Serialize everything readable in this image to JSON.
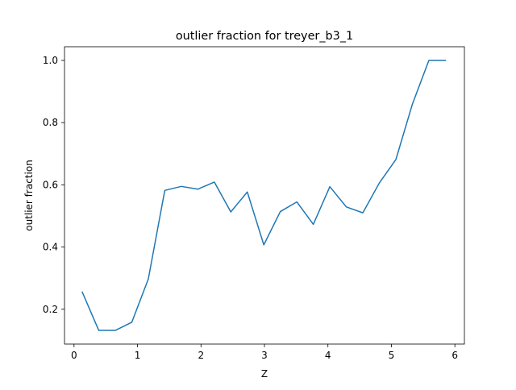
{
  "chart_data": {
    "type": "line",
    "title": "outlier fraction for treyer_b3_1",
    "xlabel": "Z",
    "ylabel": "outlier fraction",
    "xlim": [
      -0.15,
      6.15
    ],
    "ylim": [
      0.088,
      1.044
    ],
    "x_ticks": [
      0,
      1,
      2,
      3,
      4,
      5,
      6
    ],
    "x_tick_labels": [
      "0",
      "1",
      "2",
      "3",
      "4",
      "5",
      "6"
    ],
    "y_ticks": [
      0.2,
      0.4,
      0.6,
      0.8,
      1.0
    ],
    "y_tick_labels": [
      "0.2",
      "0.4",
      "0.6",
      "0.8",
      "1.0"
    ],
    "grid": false,
    "series": [
      {
        "color": "#1f77b4",
        "x": [
          0.13,
          0.39,
          0.65,
          0.91,
          1.17,
          1.43,
          1.69,
          1.95,
          2.21,
          2.47,
          2.73,
          2.99,
          3.25,
          3.51,
          3.77,
          4.03,
          4.29,
          4.55,
          4.81,
          5.07,
          5.33,
          5.59,
          5.85
        ],
        "y": [
          0.255,
          0.132,
          0.132,
          0.158,
          0.297,
          0.582,
          0.595,
          0.586,
          0.609,
          0.513,
          0.577,
          0.407,
          0.514,
          0.545,
          0.473,
          0.594,
          0.529,
          0.51,
          0.606,
          0.681,
          0.859,
          1.0,
          1.0
        ]
      }
    ]
  }
}
